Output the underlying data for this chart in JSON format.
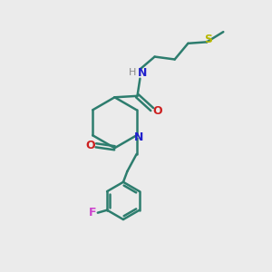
{
  "background_color": "#ebebeb",
  "bond_color": "#2d7d6e",
  "n_color": "#2020cc",
  "o_color": "#cc2020",
  "f_color": "#cc44cc",
  "s_color": "#b8b800",
  "line_width": 1.8,
  "fig_width": 3.0,
  "fig_height": 3.0,
  "dpi": 100,
  "xlim": [
    0,
    10
  ],
  "ylim": [
    0,
    10
  ]
}
